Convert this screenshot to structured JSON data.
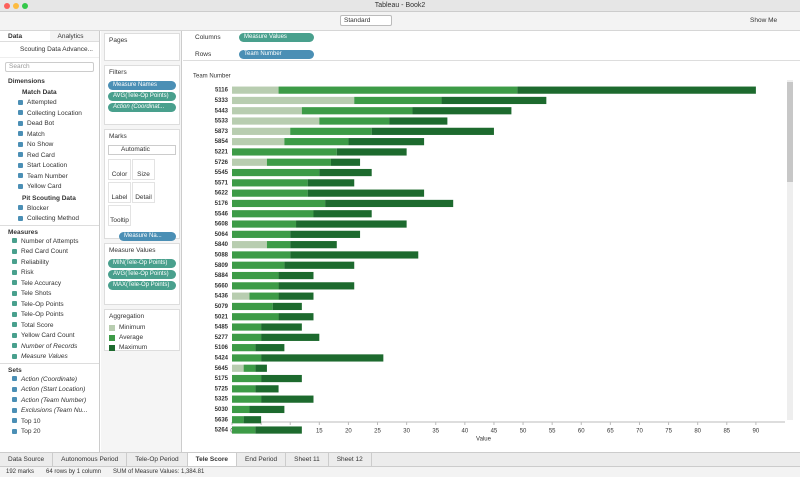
{
  "window": {
    "title": "Tableau - Book2"
  },
  "toolbar": {
    "view_size": "Standard",
    "show_me": "Show Me"
  },
  "data_pane": {
    "tabs": [
      "Data",
      "Analytics"
    ],
    "source": "Scouting Data Advance...",
    "search": "Search",
    "dimensions_title": "Dimensions",
    "dimension_groups": [
      {
        "name": "Match Data",
        "fields": [
          "Attempted",
          "Collecting Location",
          "Dead Bot",
          "Match",
          "No Show",
          "Red Card",
          "Start Location",
          "Team Number",
          "Yellow Card"
        ]
      },
      {
        "name": "Pit Scouting Data",
        "fields": [
          "Blocker",
          "Collecting Method"
        ]
      }
    ],
    "measures_title": "Measures",
    "measures": [
      "Number of Attempts",
      "Red Card Count",
      "Reliability",
      "Risk",
      "Tele Accuracy",
      "Tele Shots",
      "Tele-Op Points",
      "Tele-Op Points",
      "Total Score",
      "Yellow Card Count",
      "Number of Records",
      "Measure Values"
    ],
    "sets_title": "Sets",
    "sets": [
      "Action (Coordinate)",
      "Action (Start Location)",
      "Action (Team Number)",
      "Exclusions (Team Nu...",
      "Top 10",
      "Top 20"
    ]
  },
  "cards": {
    "pages": "Pages",
    "filters_title": "Filters",
    "filters": [
      "Measure Names",
      "AVG(Tele-Op Points)",
      "Action (Coordinat..."
    ],
    "marks_title": "Marks",
    "mark_type": "Automatic",
    "mark_buttons": [
      "Color",
      "Size",
      "Label",
      "Detail",
      "Tooltip"
    ],
    "mark_pill": "Measure Na...",
    "measure_values_title": "Measure Values",
    "measure_values": [
      "MIN(Tele-Op Points)",
      "AVG(Tele-Op Points)",
      "MAX(Tele-Op Points)"
    ]
  },
  "shelves": {
    "columns_label": "Columns",
    "columns_pill": "Measure Values",
    "rows_label": "Rows",
    "rows_pill": "Team Number"
  },
  "chart_data": {
    "type": "stacked-bar-horizontal",
    "y_header": "Team Number",
    "x_label": "Value",
    "legend_title": "Aggregation",
    "categories": [
      "5116",
      "5333",
      "5443",
      "5533",
      "5873",
      "5854",
      "5221",
      "5726",
      "5545",
      "5571",
      "5622",
      "5176",
      "5546",
      "5608",
      "5064",
      "5840",
      "5088",
      "5809",
      "5884",
      "5660",
      "5436",
      "5079",
      "5021",
      "5485",
      "5277",
      "5106",
      "5424",
      "5645",
      "5175",
      "5725",
      "5325",
      "5030",
      "5636",
      "5264"
    ],
    "series": [
      {
        "name": "Minimum",
        "color": "#b8cdb0",
        "values": [
          8,
          21,
          12,
          15,
          10,
          9,
          0,
          6,
          0,
          0,
          0,
          0,
          0,
          0,
          0,
          6,
          0,
          0,
          0,
          0,
          3,
          0,
          0,
          0,
          0,
          0,
          0,
          2,
          0,
          0,
          0,
          0,
          0,
          0
        ]
      },
      {
        "name": "Average",
        "color": "#3d9b47",
        "values": [
          41,
          15,
          19,
          12,
          14,
          11,
          18,
          11,
          15,
          13,
          13,
          16,
          14,
          11,
          10,
          4,
          10,
          9,
          8,
          8,
          5,
          7,
          8,
          5,
          5,
          4,
          5,
          2,
          5,
          4,
          5,
          3,
          2,
          4
        ]
      },
      {
        "name": "Maximum",
        "color": "#1d6a2e",
        "values": [
          41,
          18,
          17,
          10,
          21,
          13,
          12,
          5,
          9,
          8,
          20,
          22,
          10,
          19,
          12,
          8,
          22,
          12,
          6,
          13,
          6,
          5,
          6,
          7,
          10,
          5,
          21,
          2,
          7,
          4,
          9,
          6,
          3,
          8
        ]
      }
    ],
    "xlim": [
      0,
      95
    ],
    "xticks": [
      0,
      5,
      10,
      15,
      20,
      25,
      30,
      35,
      40,
      45,
      50,
      55,
      60,
      65,
      70,
      75,
      80,
      85,
      90
    ],
    "grid": false
  },
  "sheet_tabs": [
    "Data Source",
    "Autonomous Period",
    "Tele-Op Period",
    "Tele Score",
    "End Period",
    "Sheet 11",
    "Sheet 12"
  ],
  "status": [
    "192 marks",
    "64 rows by 1 column",
    "SUM of Measure Values: 1,384.81"
  ]
}
